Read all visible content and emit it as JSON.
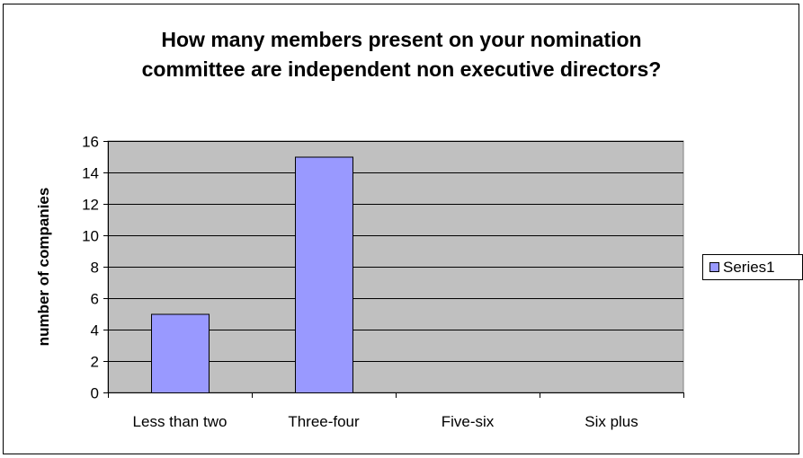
{
  "chart_data": {
    "type": "bar",
    "title_lines": [
      "How many members present on your nomination",
      "committee are independent non executive directors?"
    ],
    "xlabel": "",
    "ylabel": "number of companies",
    "categories": [
      "Less than two",
      "Three-four",
      "Five-six",
      "Six plus"
    ],
    "series": [
      {
        "name": "Series1",
        "values": [
          5,
          15,
          0,
          0
        ]
      }
    ],
    "ylim": [
      0,
      16
    ],
    "yticks": [
      0,
      2,
      4,
      6,
      8,
      10,
      12,
      14,
      16
    ],
    "grid": true,
    "legend_position": "right",
    "colors": {
      "bar_fill": "#9999ff",
      "plot_background": "#c0c0c0",
      "gridline": "#000000"
    }
  }
}
